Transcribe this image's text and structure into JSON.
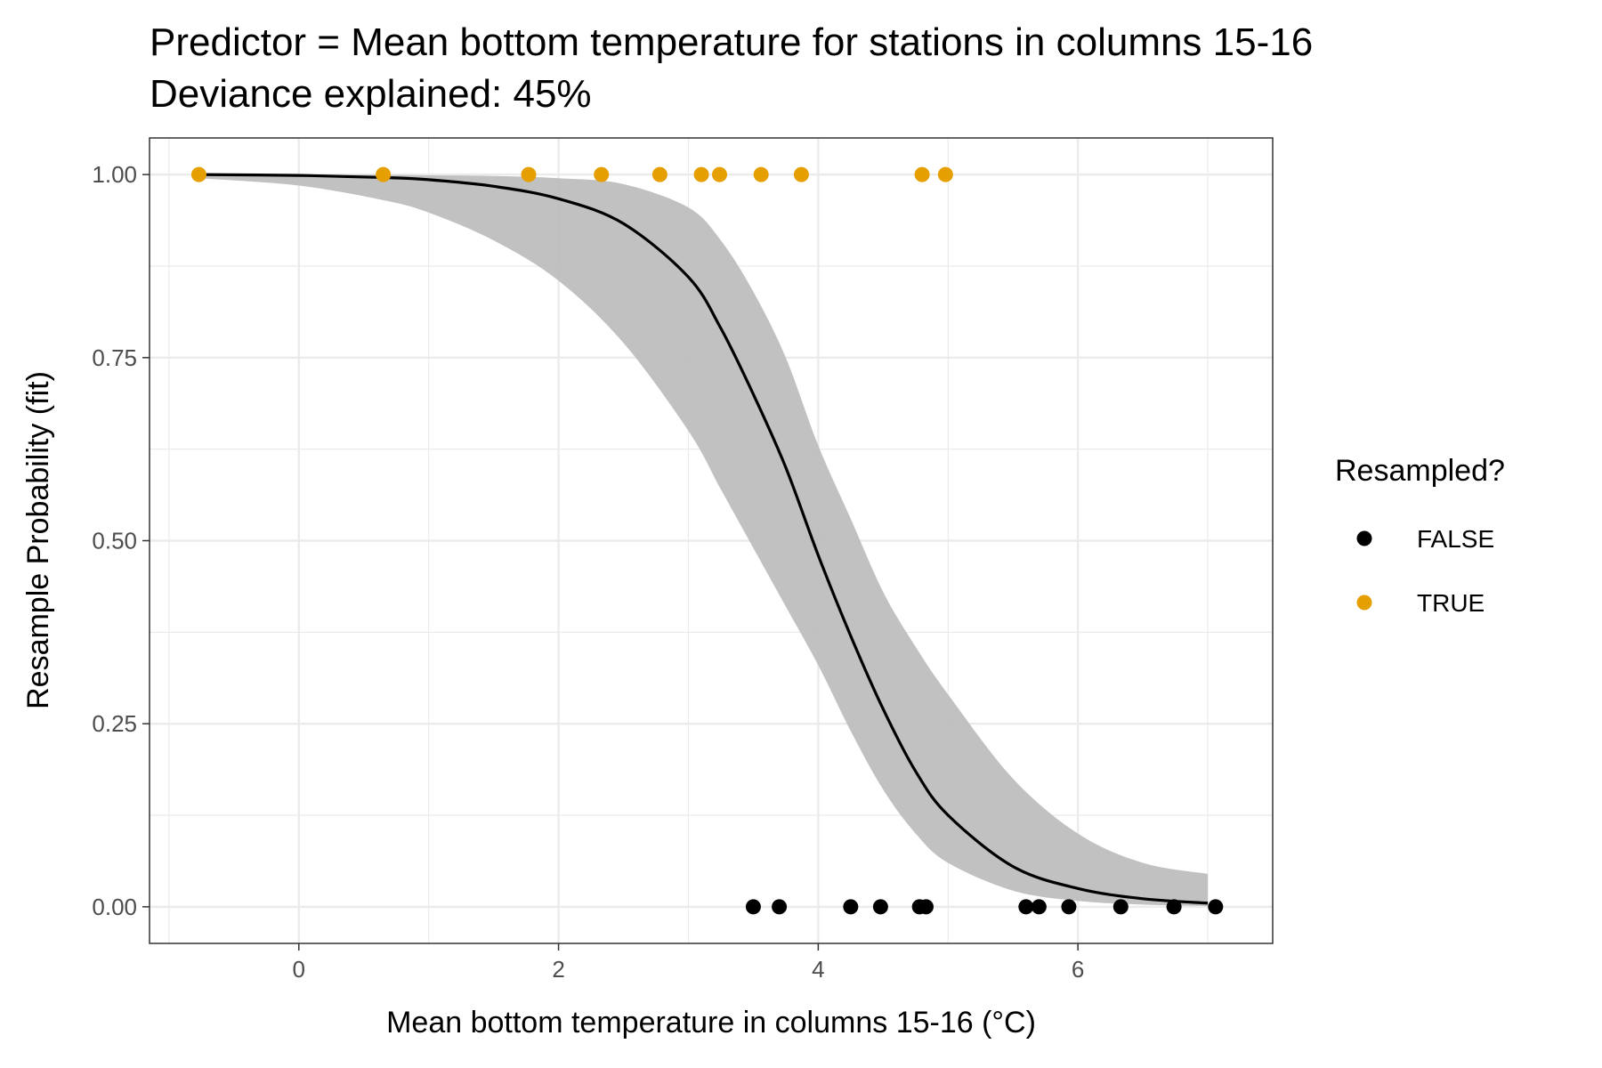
{
  "chart_data": {
    "type": "scatter",
    "title": "Predictor = Mean bottom temperature for stations in columns 15-16",
    "subtitle": "Deviance explained: 45%",
    "xlabel": "Mean bottom temperature in columns 15-16 (°C)",
    "ylabel": "Resample Probability (fit)",
    "xlim": [
      -1.15,
      7.5
    ],
    "ylim": [
      -0.05,
      1.05
    ],
    "x_ticks": [
      0,
      2,
      4,
      6
    ],
    "x_tick_labels": [
      "0",
      "2",
      "4",
      "6"
    ],
    "y_ticks": [
      0,
      0.25,
      0.5,
      0.75,
      1
    ],
    "y_tick_labels": [
      "0.00",
      "0.25",
      "0.50",
      "0.75",
      "1.00"
    ],
    "grid": true,
    "legend": {
      "title": "Resampled?",
      "placement": "right",
      "entries": [
        {
          "label": "FALSE",
          "color": "#000000"
        },
        {
          "label": "TRUE",
          "color": "#E69F00"
        }
      ]
    },
    "series": [
      {
        "name": "FALSE",
        "color": "#000000",
        "x": [
          3.5,
          3.7,
          4.25,
          4.48,
          4.78,
          4.83,
          5.6,
          5.7,
          5.93,
          6.33,
          6.74,
          7.06
        ],
        "y": [
          0,
          0,
          0,
          0,
          0,
          0,
          0,
          0,
          0,
          0,
          0,
          0
        ]
      },
      {
        "name": "TRUE",
        "color": "#E69F00",
        "x": [
          -0.77,
          0.65,
          1.77,
          2.33,
          2.78,
          3.1,
          3.24,
          3.56,
          3.87,
          4.8,
          4.98
        ],
        "y": [
          1,
          1,
          1,
          1,
          1,
          1,
          1,
          1,
          1,
          1,
          1
        ]
      }
    ],
    "fit": {
      "color": "#000000",
      "ribbon_color": "#BEBEBE",
      "x": [
        -0.77,
        0,
        0.65,
        1,
        1.5,
        2,
        2.5,
        3,
        3.25,
        3.5,
        3.75,
        4,
        4.25,
        4.5,
        4.75,
        5,
        5.5,
        6,
        6.5,
        7
      ],
      "y": [
        1.0,
        0.9988,
        0.996,
        0.993,
        0.984,
        0.967,
        0.933,
        0.86,
        0.79,
        0.7,
        0.6,
        0.48,
        0.37,
        0.27,
        0.185,
        0.125,
        0.055,
        0.025,
        0.011,
        0.005
      ],
      "lower": [
        0.995,
        0.985,
        0.965,
        0.948,
        0.91,
        0.855,
        0.77,
        0.65,
        0.57,
        0.49,
        0.41,
        0.33,
        0.24,
        0.16,
        0.1,
        0.06,
        0.022,
        0.008,
        0.003,
        0.001
      ],
      "upper": [
        1.0,
        0.9999,
        0.9996,
        0.999,
        0.998,
        0.995,
        0.987,
        0.955,
        0.91,
        0.84,
        0.75,
        0.63,
        0.53,
        0.43,
        0.355,
        0.29,
        0.175,
        0.1,
        0.06,
        0.045
      ]
    }
  }
}
